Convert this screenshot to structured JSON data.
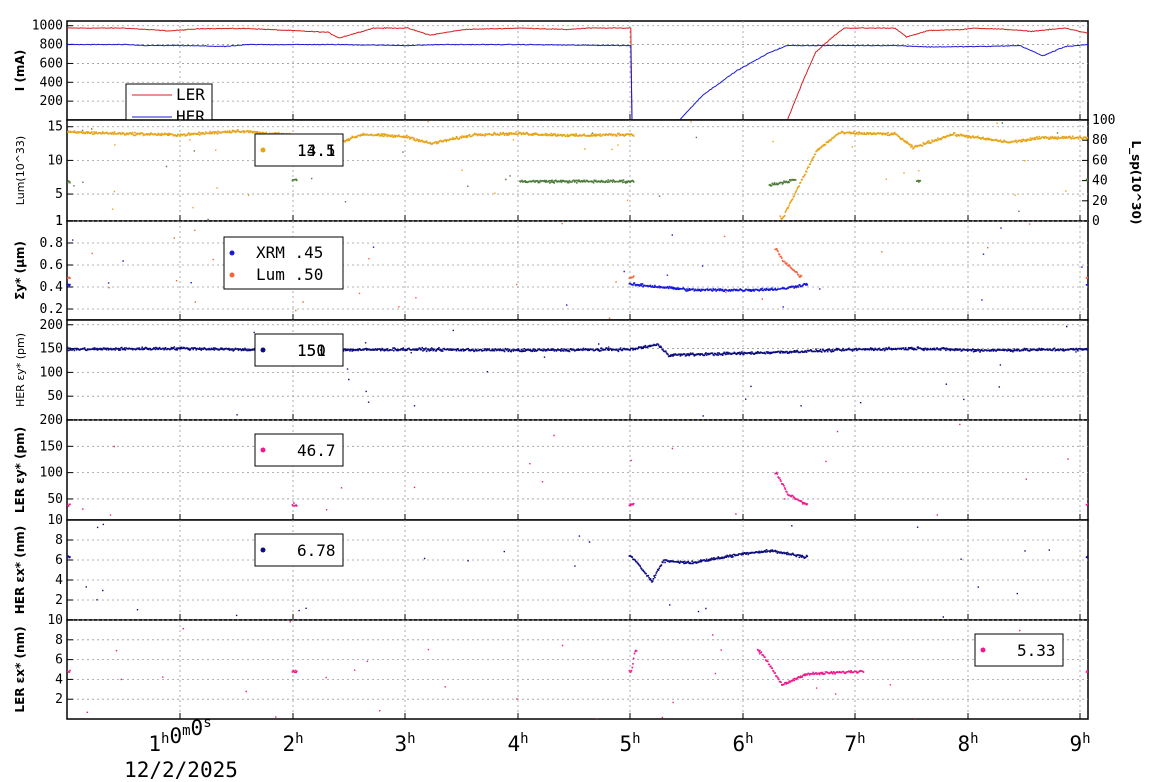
{
  "chart_data": {
    "type": "stacked time-series scatter/line panels",
    "x_axis": {
      "tick_labels": [
        "1h0m0s",
        "2h",
        "3h",
        "4h",
        "5h",
        "6h",
        "7h",
        "8h",
        "9h"
      ],
      "date": "12/2/2025",
      "range_hours": [
        0.0,
        9.0
      ]
    },
    "panels": [
      {
        "id": "current",
        "ylabel": "I (mA)",
        "ylim": [
          0,
          1050
        ],
        "yticks": [
          200,
          400,
          600,
          800,
          1000
        ],
        "grid": true,
        "legend_position": "top-left",
        "series": [
          {
            "name": "LER",
            "kind": "line",
            "color": "#d62020",
            "points": [
              [
                0,
                975
              ],
              [
                0.5,
                975
              ],
              [
                0.9,
                945
              ],
              [
                1.2,
                970
              ],
              [
                1.6,
                970
              ],
              [
                2.3,
                930
              ],
              [
                2.4,
                870
              ],
              [
                2.7,
                975
              ],
              [
                3.0,
                975
              ],
              [
                3.2,
                900
              ],
              [
                3.5,
                960
              ],
              [
                4.0,
                975
              ],
              [
                4.4,
                960
              ],
              [
                4.6,
                975
              ],
              [
                4.97,
                975
              ],
              [
                4.98,
                0
              ],
              [
                6.35,
                0
              ],
              [
                6.4,
                150
              ],
              [
                6.5,
                450
              ],
              [
                6.6,
                720
              ],
              [
                6.75,
                880
              ],
              [
                6.85,
                975
              ],
              [
                7.3,
                975
              ],
              [
                7.4,
                880
              ],
              [
                7.6,
                950
              ],
              [
                7.9,
                960
              ],
              [
                8.0,
                975
              ],
              [
                8.3,
                960
              ],
              [
                8.5,
                940
              ],
              [
                8.8,
                975
              ],
              [
                9.0,
                920
              ]
            ]
          },
          {
            "name": "HER",
            "kind": "line",
            "color": "#1a1ad6",
            "points": [
              [
                0,
                800
              ],
              [
                0.5,
                800
              ],
              [
                0.7,
                790
              ],
              [
                1.0,
                790
              ],
              [
                1.4,
                780
              ],
              [
                1.6,
                800
              ],
              [
                2.4,
                800
              ],
              [
                3.0,
                790
              ],
              [
                3.3,
                800
              ],
              [
                4.0,
                800
              ],
              [
                4.4,
                795
              ],
              [
                4.97,
                790
              ],
              [
                4.98,
                0
              ],
              [
                5.4,
                0
              ],
              [
                5.6,
                260
              ],
              [
                5.9,
                520
              ],
              [
                6.2,
                720
              ],
              [
                6.35,
                790
              ],
              [
                7.3,
                790
              ],
              [
                7.6,
                775
              ],
              [
                8.1,
                780
              ],
              [
                8.4,
                790
              ],
              [
                8.6,
                680
              ],
              [
                8.8,
                780
              ],
              [
                9.0,
                800
              ]
            ]
          }
        ]
      },
      {
        "id": "luminosity",
        "ylabel": "Lum(10^33)",
        "ylim_left": [
          1,
          16
        ],
        "yticks_left": [
          1,
          5,
          10,
          15
        ],
        "y2label": "L_sp(10^30)",
        "ylim_right": [
          0,
          100
        ],
        "yticks_right": [
          0,
          20,
          40,
          60,
          80,
          100
        ],
        "grid": true,
        "legend_position": "top-left",
        "legend_values": [
          "14.1",
          "13.5"
        ],
        "series": [
          {
            "kind": "scatter",
            "color": "#e8a417",
            "points": [
              [
                0,
                14.3
              ],
              [
                1.0,
                13.9
              ],
              [
                1.5,
                14.5
              ],
              [
                2.0,
                13.8
              ],
              [
                2.3,
                12.2
              ],
              [
                2.6,
                14.0
              ],
              [
                3.0,
                13.6
              ],
              [
                3.2,
                12.6
              ],
              [
                3.6,
                14.0
              ],
              [
                4.0,
                14.1
              ],
              [
                4.5,
                13.8
              ],
              [
                4.97,
                14.0
              ],
              [
                6.3,
                1.5
              ],
              [
                6.45,
                6.5
              ],
              [
                6.6,
                11.5
              ],
              [
                6.8,
                14.2
              ],
              [
                7.3,
                14.0
              ],
              [
                7.45,
                12.0
              ],
              [
                7.8,
                14.0
              ],
              [
                8.3,
                12.8
              ],
              [
                8.6,
                13.5
              ],
              [
                9.0,
                13.5
              ]
            ]
          },
          {
            "kind": "scatter",
            "color": "#4f7c3a",
            "points": [
              [
                0,
                7.0
              ],
              [
                2.0,
                7.2
              ],
              [
                4.0,
                7.0
              ],
              [
                4.97,
                7.0
              ],
              [
                6.2,
                6.5
              ],
              [
                6.4,
                7.2
              ],
              [
                7.5,
                7.0
              ],
              [
                9.0,
                7.2
              ]
            ]
          }
        ]
      },
      {
        "id": "sigma_y",
        "ylabel": "Σy* (μm)",
        "ylim": [
          0.1,
          1.0
        ],
        "yticks": [
          0.2,
          0.4,
          0.6,
          0.8,
          1.0
        ],
        "grid": true,
        "legend_position": "top-left",
        "legend_entries": [
          {
            "label": "XRM",
            "value": ".45"
          },
          {
            "label": "Lum",
            "value": ".50"
          }
        ],
        "series": [
          {
            "name": "XRM",
            "kind": "scatter",
            "color": "#1818d8",
            "points": [
              [
                0,
                0.43
              ],
              [
                2.0,
                0.43
              ],
              [
                4.97,
                0.43
              ],
              [
                5.2,
                0.41
              ],
              [
                5.5,
                0.38
              ],
              [
                6.0,
                0.38
              ],
              [
                6.3,
                0.39
              ],
              [
                6.5,
                0.43
              ],
              [
                9.0,
                0.43
              ]
            ]
          },
          {
            "name": "Lum",
            "kind": "scatter",
            "color": "#f2643c",
            "points": [
              [
                0,
                0.49
              ],
              [
                2.0,
                0.49
              ],
              [
                4.97,
                0.49
              ],
              [
                6.25,
                0.75
              ],
              [
                6.3,
                0.65
              ],
              [
                6.45,
                0.51
              ],
              [
                9.0,
                0.49
              ]
            ]
          }
        ]
      },
      {
        "id": "her_eps_y",
        "ylabel": "HER εy* (pm)",
        "ylim": [
          0,
          210
        ],
        "yticks": [
          50,
          100,
          150,
          200
        ],
        "grid": true,
        "legend_position": "top-left",
        "legend_values": [
          "151",
          "150"
        ],
        "series": [
          {
            "kind": "scatter",
            "color": "#0c0c80",
            "points": [
              [
                0,
                150
              ],
              [
                1.0,
                152
              ],
              [
                2.0,
                148
              ],
              [
                3.0,
                150
              ],
              [
                4.0,
                148
              ],
              [
                4.97,
                150
              ],
              [
                5.2,
                160
              ],
              [
                5.3,
                138
              ],
              [
                6.0,
                142
              ],
              [
                7.0,
                150
              ],
              [
                7.5,
                152
              ],
              [
                8.0,
                148
              ],
              [
                9.0,
                150
              ]
            ]
          }
        ]
      },
      {
        "id": "ler_eps_y",
        "ylabel": "LER εy* (pm)",
        "ylim": [
          10,
          200
        ],
        "yticks": [
          10,
          50,
          100,
          150,
          200
        ],
        "grid": true,
        "legend_position": "top-left",
        "legend_values": [
          "46.7"
        ],
        "series": [
          {
            "kind": "scatter",
            "color": "#f01a8c",
            "points": [
              [
                0,
                40
              ],
              [
                2.0,
                40
              ],
              [
                4.97,
                40
              ],
              [
                6.25,
                100
              ],
              [
                6.35,
                60
              ],
              [
                6.5,
                42
              ],
              [
                9.0,
                42
              ]
            ]
          }
        ]
      },
      {
        "id": "her_eps_x",
        "ylabel": "HER εx* (nm)",
        "ylim": [
          0,
          10
        ],
        "yticks": [
          2,
          4,
          6,
          8
        ],
        "grid": true,
        "legend_position": "top-left",
        "legend_values": [
          "6.78"
        ],
        "series": [
          {
            "kind": "scatter",
            "color": "#0c0c80",
            "points": [
              [
                0,
                6.4
              ],
              [
                2.0,
                6.4
              ],
              [
                4.97,
                6.4
              ],
              [
                5.15,
                4.0
              ],
              [
                5.25,
                6.0
              ],
              [
                5.5,
                5.8
              ],
              [
                6.0,
                6.8
              ],
              [
                6.2,
                7.0
              ],
              [
                6.5,
                6.4
              ],
              [
                9.0,
                6.4
              ]
            ]
          }
        ]
      },
      {
        "id": "ler_eps_x",
        "ylabel": "LER εx* (nm)",
        "ylim": [
          0,
          10
        ],
        "yticks": [
          2,
          4,
          6,
          8,
          10
        ],
        "grid": true,
        "legend_position": "top-right",
        "legend_values": [
          "5.33"
        ],
        "series": [
          {
            "kind": "scatter",
            "color": "#f01a8c",
            "points": [
              [
                0,
                4.9
              ],
              [
                2.0,
                4.9
              ],
              [
                4.97,
                4.9
              ],
              [
                5.0,
                7.0
              ],
              [
                6.1,
                7.0
              ],
              [
                6.3,
                3.5
              ],
              [
                6.5,
                4.6
              ],
              [
                7.0,
                4.9
              ],
              [
                9.0,
                4.9
              ]
            ]
          }
        ]
      }
    ]
  }
}
